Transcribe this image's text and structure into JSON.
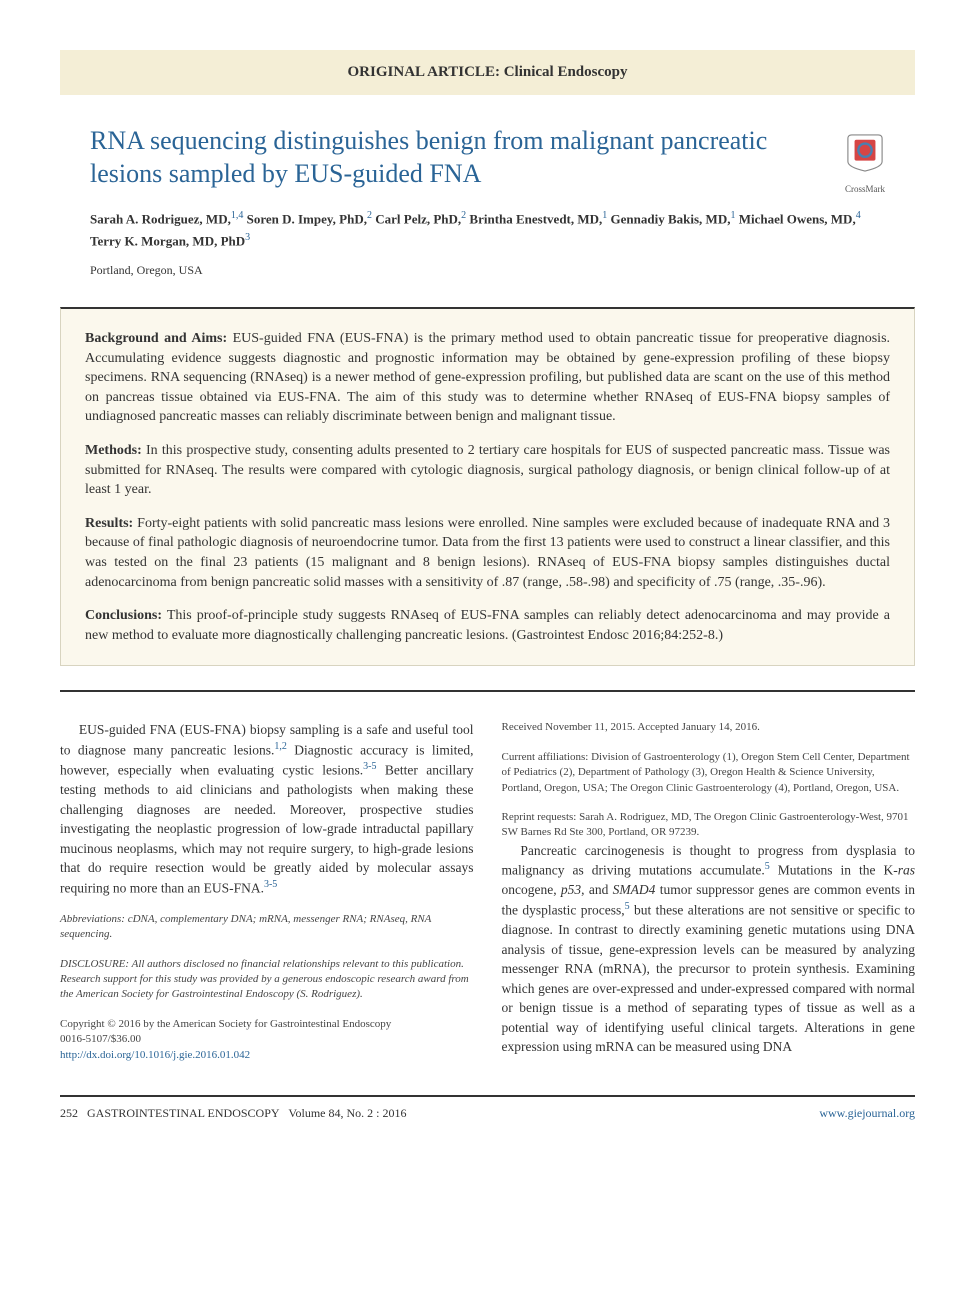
{
  "category": "ORIGINAL ARTICLE: Clinical Endoscopy",
  "title": "RNA sequencing distinguishes benign from malignant pancreatic lesions sampled by EUS-guided FNA",
  "crossmark_label": "CrossMark",
  "authors_html": "Sarah A. Rodriguez, MD,<sup>1,4</sup> Soren D. Impey, PhD,<sup>2</sup> Carl Pelz, PhD,<sup>2</sup> Brintha Enestvedt, MD,<sup>1</sup> Gennadiy Bakis, MD,<sup>1</sup> Michael Owens, MD,<sup>4</sup> Terry K. Morgan, MD, PhD<sup>3</sup>",
  "location": "Portland, Oregon, USA",
  "abstract": {
    "background_label": "Background and Aims:",
    "background": "EUS-guided FNA (EUS-FNA) is the primary method used to obtain pancreatic tissue for preoperative diagnosis. Accumulating evidence suggests diagnostic and prognostic information may be obtained by gene-expression profiling of these biopsy specimens. RNA sequencing (RNAseq) is a newer method of gene-expression profiling, but published data are scant on the use of this method on pancreas tissue obtained via EUS-FNA. The aim of this study was to determine whether RNAseq of EUS-FNA biopsy samples of undiagnosed pancreatic masses can reliably discriminate between benign and malignant tissue.",
    "methods_label": "Methods:",
    "methods": "In this prospective study, consenting adults presented to 2 tertiary care hospitals for EUS of suspected pancreatic mass. Tissue was submitted for RNAseq. The results were compared with cytologic diagnosis, surgical pathology diagnosis, or benign clinical follow-up of at least 1 year.",
    "results_label": "Results:",
    "results": "Forty-eight patients with solid pancreatic mass lesions were enrolled. Nine samples were excluded because of inadequate RNA and 3 because of final pathologic diagnosis of neuroendocrine tumor. Data from the first 13 patients were used to construct a linear classifier, and this was tested on the final 23 patients (15 malignant and 8 benign lesions). RNAseq of EUS-FNA biopsy samples distinguishes ductal adenocarcinoma from benign pancreatic solid masses with a sensitivity of .87 (range, .58-.98) and specificity of .75 (range, .35-.96).",
    "conclusions_label": "Conclusions:",
    "conclusions": "This proof-of-principle study suggests RNAseq of EUS-FNA samples can reliably detect adenocarcinoma and may provide a new method to evaluate more diagnostically challenging pancreatic lesions. (Gastrointest Endosc 2016;84:252-8.)"
  },
  "body": {
    "p1_a": "EUS-guided FNA (EUS-FNA) biopsy sampling is a safe and useful tool to diagnose many pancreatic lesions.",
    "p1_ref1": "1,2",
    "p1_b": " Diagnostic accuracy is limited, however, especially when evaluating cystic lesions.",
    "p1_ref2": "3-5",
    "p1_c": " Better ancillary testing methods to aid clinicians and pathologists when making these challenging diagnoses are needed. Moreover, prospective studies investigating the neoplastic progression of low-grade intraductal papillary mucinous neoplasms, which may not require surgery, to high-grade lesions that do require resection would be greatly aided by molecular assays requiring no more than an EUS-FNA.",
    "p1_ref3": "3-5",
    "p2_a": "Pancreatic carcinogenesis is thought to progress from dysplasia to malignancy as driving mutations accumulate.",
    "p2_ref1": "5",
    "p2_b": " Mutations in the K-",
    "p2_gene1": "ras",
    "p2_c": " oncogene, ",
    "p2_gene2": "p53",
    "p2_d": ", and ",
    "p2_gene3": "SMAD4",
    "p2_e": " tumor suppressor genes are common events in the dysplastic process,",
    "p2_ref2": "5",
    "p2_f": " but these alterations are not sensitive or specific to diagnose. In contrast to directly examining genetic mutations using DNA analysis of tissue, gene-expression levels can be measured by analyzing messenger RNA (mRNA), the precursor to protein synthesis. Examining which genes are over-expressed and under-expressed compared with normal or benign tissue is a method of separating types of tissue as well as a potential way of identifying useful clinical targets. Alterations in gene expression using mRNA can be measured using DNA"
  },
  "meta": {
    "abbreviations": "Abbreviations: cDNA, complementary DNA; mRNA, messenger RNA; RNAseq, RNA sequencing.",
    "disclosure": "DISCLOSURE: All authors disclosed no financial relationships relevant to this publication. Research support for this study was provided by a generous endoscopic research award from the American Society for Gastrointestinal Endoscopy (S. Rodriguez).",
    "copyright": "Copyright © 2016 by the American Society for Gastrointestinal Endoscopy",
    "issn": "0016-5107/$36.00",
    "doi_url": "http://dx.doi.org/10.1016/j.gie.2016.01.042",
    "received": "Received November 11, 2015. Accepted January 14, 2016.",
    "affiliations": "Current affiliations: Division of Gastroenterology (1), Oregon Stem Cell Center, Department of Pediatrics (2), Department of Pathology (3), Oregon Health & Science University, Portland, Oregon, USA; The Oregon Clinic Gastroenterology (4), Portland, Oregon, USA.",
    "reprint": "Reprint requests: Sarah A. Rodriguez, MD, The Oregon Clinic Gastroenterology-West, 9701 SW Barnes Rd Ste 300, Portland, OR 97239."
  },
  "footer": {
    "page_num": "252",
    "journal": "GASTROINTESTINAL ENDOSCOPY",
    "volume": "Volume 84, No. 2 : 2016",
    "url": "www.giejournal.org"
  },
  "colors": {
    "link": "#2a6496",
    "category_bg": "#f4eed6",
    "abstract_bg": "#fbf8ed"
  }
}
